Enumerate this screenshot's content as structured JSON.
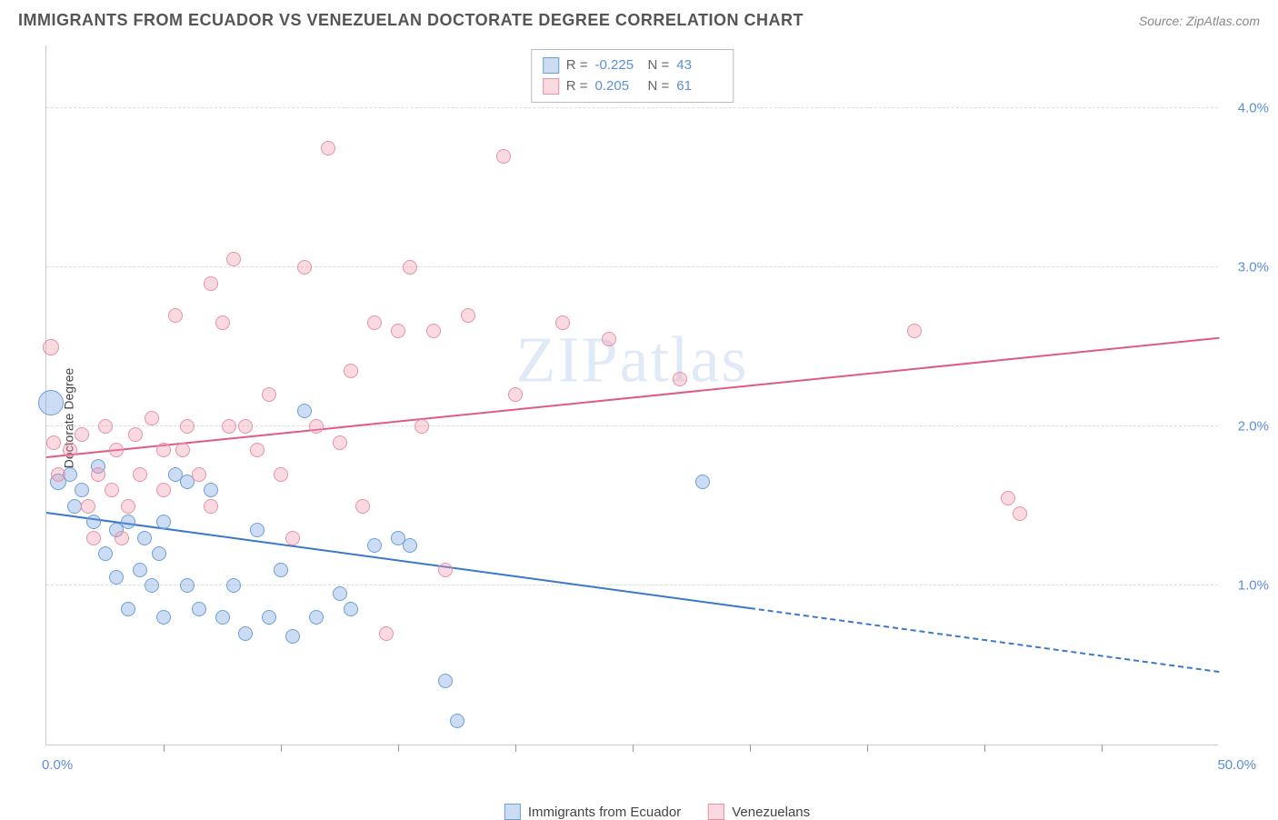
{
  "header": {
    "title": "IMMIGRANTS FROM ECUADOR VS VENEZUELAN DOCTORATE DEGREE CORRELATION CHART",
    "source_prefix": "Source: ",
    "source": "ZipAtlas.com"
  },
  "watermark": "ZIPatlas",
  "chart": {
    "type": "scatter",
    "y_axis_label": "Doctorate Degree",
    "x_range": [
      0,
      50
    ],
    "y_range": [
      0,
      4.4
    ],
    "x_start_label": "0.0%",
    "x_end_label": "50.0%",
    "x_tick_positions": [
      5,
      10,
      15,
      20,
      25,
      30,
      35,
      40,
      45
    ],
    "y_grid": [
      {
        "value": 1.0,
        "label": "1.0%"
      },
      {
        "value": 2.0,
        "label": "2.0%"
      },
      {
        "value": 3.0,
        "label": "3.0%"
      },
      {
        "value": 4.0,
        "label": "4.0%"
      }
    ],
    "background_color": "#ffffff",
    "grid_color": "#dddddd",
    "axis_color": "#cccccc",
    "tick_label_color": "#5b8fd6",
    "series": [
      {
        "id": "ecuador",
        "label": "Immigrants from Ecuador",
        "fill": "rgba(108,158,220,0.35)",
        "stroke": "#6c9edc",
        "trend_color": "#3b78c9",
        "R": "-0.225",
        "N": "43",
        "trend": {
          "x1": 0,
          "y1": 1.45,
          "x2": 30,
          "y2": 0.85,
          "solid_until_x": 30,
          "dash_to_x": 50,
          "y_at_dash_end": 0.45
        },
        "points": [
          {
            "x": 0.2,
            "y": 2.15,
            "r": 14
          },
          {
            "x": 0.5,
            "y": 1.65,
            "r": 9
          },
          {
            "x": 1.0,
            "y": 1.7,
            "r": 8
          },
          {
            "x": 1.2,
            "y": 1.5,
            "r": 8
          },
          {
            "x": 1.5,
            "y": 1.6,
            "r": 8
          },
          {
            "x": 2.0,
            "y": 1.4,
            "r": 8
          },
          {
            "x": 2.2,
            "y": 1.75,
            "r": 8
          },
          {
            "x": 2.5,
            "y": 1.2,
            "r": 8
          },
          {
            "x": 3.0,
            "y": 1.35,
            "r": 8
          },
          {
            "x": 3.0,
            "y": 1.05,
            "r": 8
          },
          {
            "x": 3.5,
            "y": 1.4,
            "r": 8
          },
          {
            "x": 3.5,
            "y": 0.85,
            "r": 8
          },
          {
            "x": 4.0,
            "y": 1.1,
            "r": 8
          },
          {
            "x": 4.2,
            "y": 1.3,
            "r": 8
          },
          {
            "x": 4.5,
            "y": 1.0,
            "r": 8
          },
          {
            "x": 4.8,
            "y": 1.2,
            "r": 8
          },
          {
            "x": 5.0,
            "y": 1.4,
            "r": 8
          },
          {
            "x": 5.0,
            "y": 0.8,
            "r": 8
          },
          {
            "x": 5.5,
            "y": 1.7,
            "r": 8
          },
          {
            "x": 6.0,
            "y": 1.65,
            "r": 8
          },
          {
            "x": 6.0,
            "y": 1.0,
            "r": 8
          },
          {
            "x": 6.5,
            "y": 0.85,
            "r": 8
          },
          {
            "x": 7.0,
            "y": 1.6,
            "r": 8
          },
          {
            "x": 7.5,
            "y": 0.8,
            "r": 8
          },
          {
            "x": 8.0,
            "y": 1.0,
            "r": 8
          },
          {
            "x": 8.5,
            "y": 0.7,
            "r": 8
          },
          {
            "x": 9.0,
            "y": 1.35,
            "r": 8
          },
          {
            "x": 9.5,
            "y": 0.8,
            "r": 8
          },
          {
            "x": 10.0,
            "y": 1.1,
            "r": 8
          },
          {
            "x": 10.5,
            "y": 0.68,
            "r": 8
          },
          {
            "x": 11.0,
            "y": 2.1,
            "r": 8
          },
          {
            "x": 11.5,
            "y": 0.8,
            "r": 8
          },
          {
            "x": 12.5,
            "y": 0.95,
            "r": 8
          },
          {
            "x": 13.0,
            "y": 0.85,
            "r": 8
          },
          {
            "x": 14.0,
            "y": 1.25,
            "r": 8
          },
          {
            "x": 15.0,
            "y": 1.3,
            "r": 8
          },
          {
            "x": 15.5,
            "y": 1.25,
            "r": 8
          },
          {
            "x": 17.0,
            "y": 0.4,
            "r": 8
          },
          {
            "x": 17.5,
            "y": 0.15,
            "r": 8
          },
          {
            "x": 28.0,
            "y": 1.65,
            "r": 8
          }
        ]
      },
      {
        "id": "venezuelan",
        "label": "Venezuelans",
        "fill": "rgba(240,150,170,0.35)",
        "stroke": "#e890a8",
        "trend_color": "#e05a85",
        "R": "0.205",
        "N": "61",
        "trend": {
          "x1": 0,
          "y1": 1.8,
          "x2": 50,
          "y2": 2.55,
          "solid_until_x": 50
        },
        "points": [
          {
            "x": 0.2,
            "y": 2.5,
            "r": 9
          },
          {
            "x": 0.3,
            "y": 1.9,
            "r": 8
          },
          {
            "x": 0.5,
            "y": 1.7,
            "r": 8
          },
          {
            "x": 1.0,
            "y": 1.85,
            "r": 8
          },
          {
            "x": 1.5,
            "y": 1.95,
            "r": 8
          },
          {
            "x": 1.8,
            "y": 1.5,
            "r": 8
          },
          {
            "x": 2.0,
            "y": 1.3,
            "r": 8
          },
          {
            "x": 2.2,
            "y": 1.7,
            "r": 8
          },
          {
            "x": 2.5,
            "y": 2.0,
            "r": 8
          },
          {
            "x": 2.8,
            "y": 1.6,
            "r": 8
          },
          {
            "x": 3.0,
            "y": 1.85,
            "r": 8
          },
          {
            "x": 3.2,
            "y": 1.3,
            "r": 8
          },
          {
            "x": 3.5,
            "y": 1.5,
            "r": 8
          },
          {
            "x": 3.8,
            "y": 1.95,
            "r": 8
          },
          {
            "x": 4.0,
            "y": 1.7,
            "r": 8
          },
          {
            "x": 4.5,
            "y": 2.05,
            "r": 8
          },
          {
            "x": 5.0,
            "y": 1.6,
            "r": 8
          },
          {
            "x": 5.0,
            "y": 1.85,
            "r": 8
          },
          {
            "x": 5.5,
            "y": 2.7,
            "r": 8
          },
          {
            "x": 5.8,
            "y": 1.85,
            "r": 8
          },
          {
            "x": 6.0,
            "y": 2.0,
            "r": 8
          },
          {
            "x": 6.5,
            "y": 1.7,
            "r": 8
          },
          {
            "x": 7.0,
            "y": 2.9,
            "r": 8
          },
          {
            "x": 7.0,
            "y": 1.5,
            "r": 8
          },
          {
            "x": 7.5,
            "y": 2.65,
            "r": 8
          },
          {
            "x": 7.8,
            "y": 2.0,
            "r": 8
          },
          {
            "x": 8.0,
            "y": 3.05,
            "r": 8
          },
          {
            "x": 8.5,
            "y": 2.0,
            "r": 8
          },
          {
            "x": 9.0,
            "y": 1.85,
            "r": 8
          },
          {
            "x": 9.5,
            "y": 2.2,
            "r": 8
          },
          {
            "x": 10.0,
            "y": 1.7,
            "r": 8
          },
          {
            "x": 10.5,
            "y": 1.3,
            "r": 8
          },
          {
            "x": 11.0,
            "y": 3.0,
            "r": 8
          },
          {
            "x": 11.5,
            "y": 2.0,
            "r": 8
          },
          {
            "x": 12.0,
            "y": 3.75,
            "r": 8
          },
          {
            "x": 12.5,
            "y": 1.9,
            "r": 8
          },
          {
            "x": 13.0,
            "y": 2.35,
            "r": 8
          },
          {
            "x": 13.5,
            "y": 1.5,
            "r": 8
          },
          {
            "x": 14.0,
            "y": 2.65,
            "r": 8
          },
          {
            "x": 14.5,
            "y": 0.7,
            "r": 8
          },
          {
            "x": 15.0,
            "y": 2.6,
            "r": 8
          },
          {
            "x": 15.5,
            "y": 3.0,
            "r": 8
          },
          {
            "x": 16.0,
            "y": 2.0,
            "r": 8
          },
          {
            "x": 16.5,
            "y": 2.6,
            "r": 8
          },
          {
            "x": 17.0,
            "y": 1.1,
            "r": 8
          },
          {
            "x": 18.0,
            "y": 2.7,
            "r": 8
          },
          {
            "x": 19.5,
            "y": 3.7,
            "r": 8
          },
          {
            "x": 20.0,
            "y": 2.2,
            "r": 8
          },
          {
            "x": 22.0,
            "y": 2.65,
            "r": 8
          },
          {
            "x": 24.0,
            "y": 2.55,
            "r": 8
          },
          {
            "x": 27.0,
            "y": 2.3,
            "r": 8
          },
          {
            "x": 37.0,
            "y": 2.6,
            "r": 8
          },
          {
            "x": 41.0,
            "y": 1.55,
            "r": 8
          },
          {
            "x": 41.5,
            "y": 1.45,
            "r": 8
          }
        ]
      }
    ],
    "bottom_legend": [
      {
        "series": "ecuador"
      },
      {
        "series": "venezuelan"
      }
    ],
    "top_legend_labels": {
      "R": "R =",
      "N": "N ="
    }
  }
}
